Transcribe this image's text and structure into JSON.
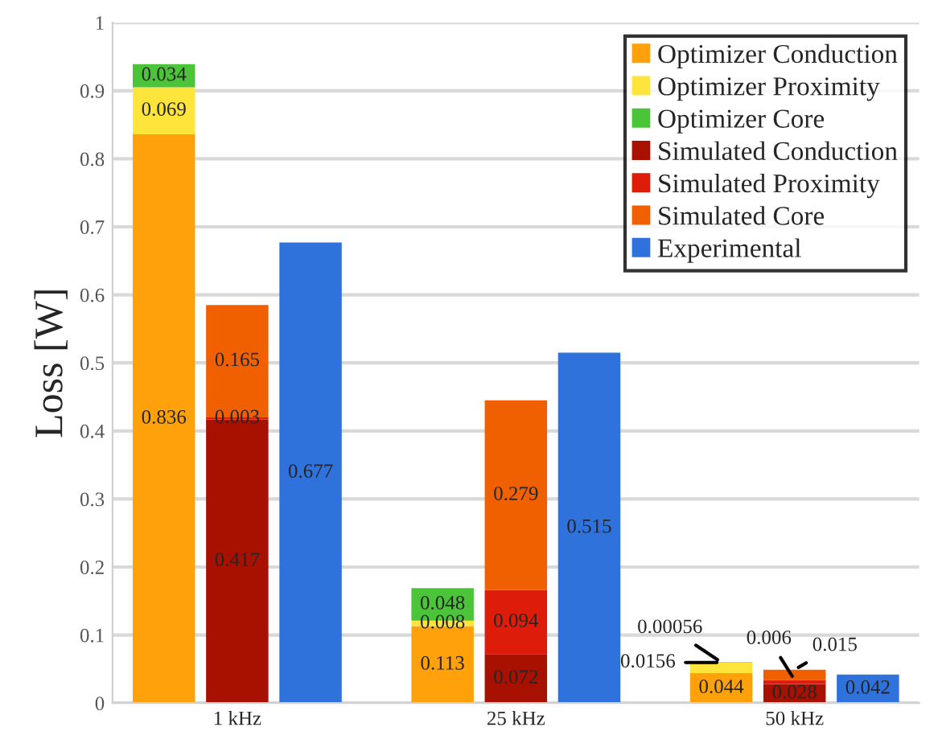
{
  "chart_data": {
    "type": "bar",
    "ylabel": "Loss [W]",
    "stacked": true,
    "categories": [
      null,
      "1 kHz",
      null,
      null,
      "25 kHz",
      null,
      null,
      "50 kHz",
      null
    ],
    "series": [
      {
        "name": "Optimizer Conduction",
        "color": "#ffa10a",
        "values": [
          0.836,
          null,
          null,
          0.113,
          null,
          null,
          0.044,
          null,
          null
        ]
      },
      {
        "name": "Optimizer Proximity",
        "color": "#ffe53b",
        "values": [
          0.069,
          null,
          null,
          0.008,
          null,
          null,
          0.0156,
          null,
          null
        ]
      },
      {
        "name": "Optimizer Core",
        "color": "#4cc43a",
        "values": [
          0.034,
          null,
          null,
          0.048,
          null,
          null,
          0.00056,
          null,
          null
        ]
      },
      {
        "name": "Simulated Conduction",
        "color": "#a81000",
        "values": [
          null,
          0.417,
          null,
          null,
          0.072,
          null,
          null,
          0.028,
          null
        ]
      },
      {
        "name": "Simulated Proximity",
        "color": "#dd1c0a",
        "values": [
          null,
          0.003,
          null,
          null,
          0.094,
          null,
          null,
          0.006,
          null
        ]
      },
      {
        "name": "Simulated Core",
        "color": "#f06000",
        "values": [
          null,
          0.165,
          null,
          null,
          0.279,
          null,
          null,
          0.015,
          null
        ]
      },
      {
        "name": "Experimental",
        "color": "#2f72dc",
        "values": [
          null,
          null,
          0.677,
          null,
          null,
          0.515,
          null,
          null,
          0.042
        ]
      }
    ],
    "ylim": [
      0,
      1
    ],
    "yticks": [
      0,
      0.1,
      0.2,
      0.3,
      0.4,
      0.5,
      0.6,
      0.7,
      0.8,
      0.9,
      1
    ],
    "grid": "y",
    "legend": "top right",
    "data_labels": true
  }
}
